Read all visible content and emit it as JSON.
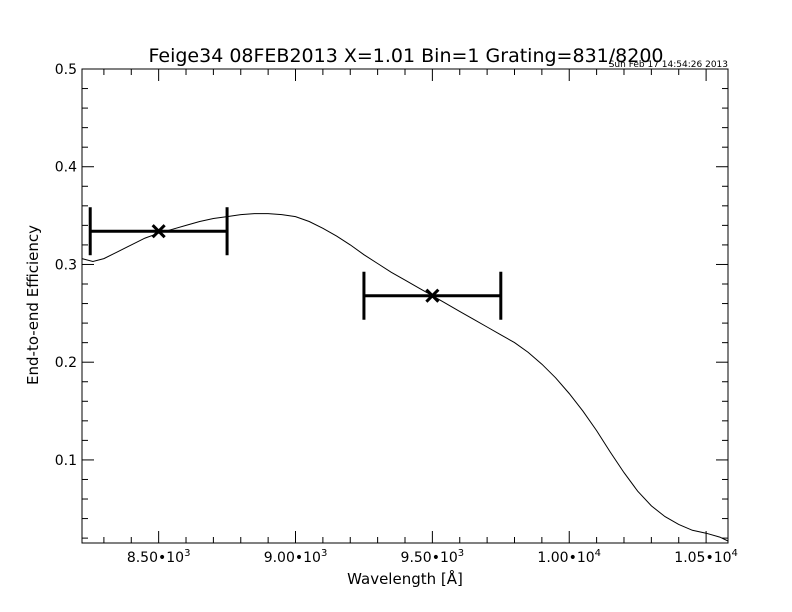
{
  "chart_data": {
    "type": "line",
    "title": "Feige34 08FEB2013 X=1.01 Bin=1 Grating=831/8200",
    "timestamp": "Sun Feb 17 14:54:26 2013",
    "xlabel": "Wavelength [Å]",
    "ylabel": "End-to-end Efficiency",
    "xlim": [
      8220,
      10580
    ],
    "ylim": [
      0.015,
      0.5
    ],
    "x_ticks": [
      {
        "value": 8500,
        "mantissa": "8.50",
        "base": "•10",
        "exp": "3"
      },
      {
        "value": 9000,
        "mantissa": "9.00",
        "base": "•10",
        "exp": "3"
      },
      {
        "value": 9500,
        "mantissa": "9.50",
        "base": "•10",
        "exp": "3"
      },
      {
        "value": 10000,
        "mantissa": "1.00",
        "base": "•10",
        "exp": "4"
      },
      {
        "value": 10500,
        "mantissa": "1.05",
        "base": "•10",
        "exp": "4"
      }
    ],
    "y_ticks": [
      {
        "value": 0.1,
        "label": "0.1"
      },
      {
        "value": 0.2,
        "label": "0.2"
      },
      {
        "value": 0.3,
        "label": "0.3"
      },
      {
        "value": 0.4,
        "label": "0.4"
      },
      {
        "value": 0.5,
        "label": "0.5"
      }
    ],
    "series": [
      {
        "x": [
          8220,
          8260,
          8300,
          8350,
          8400,
          8450,
          8500,
          8550,
          8600,
          8650,
          8700,
          8750,
          8800,
          8850,
          8900,
          8950,
          9000,
          9050,
          9100,
          9150,
          9200,
          9250,
          9300,
          9350,
          9400,
          9450,
          9500,
          9550,
          9600,
          9650,
          9700,
          9750,
          9800,
          9850,
          9900,
          9950,
          10000,
          10050,
          10100,
          10150,
          10200,
          10250,
          10300,
          10350,
          10400,
          10450,
          10500,
          10550,
          10580
        ],
        "y": [
          0.306,
          0.303,
          0.306,
          0.313,
          0.32,
          0.327,
          0.332,
          0.336,
          0.34,
          0.344,
          0.347,
          0.349,
          0.351,
          0.352,
          0.352,
          0.351,
          0.349,
          0.344,
          0.337,
          0.329,
          0.32,
          0.31,
          0.301,
          0.292,
          0.284,
          0.276,
          0.268,
          0.26,
          0.252,
          0.244,
          0.236,
          0.228,
          0.22,
          0.21,
          0.198,
          0.184,
          0.168,
          0.15,
          0.13,
          0.108,
          0.087,
          0.068,
          0.053,
          0.042,
          0.034,
          0.028,
          0.025,
          0.021,
          0.017
        ]
      }
    ],
    "error_bars": [
      {
        "x": 8500,
        "y": 0.334,
        "xerr": 250
      },
      {
        "x": 9500,
        "y": 0.268,
        "xerr": 250
      }
    ]
  }
}
